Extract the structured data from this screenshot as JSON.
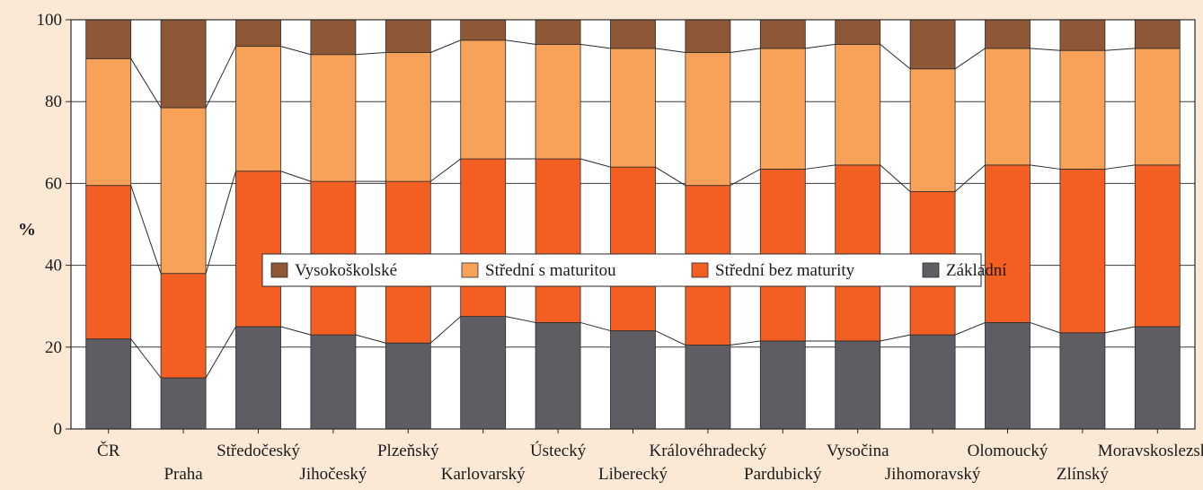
{
  "chart_data": {
    "type": "bar",
    "stacked": true,
    "ylabel": "%",
    "ylim": [
      0,
      100
    ],
    "yticks": [
      0,
      20,
      40,
      60,
      80,
      100
    ],
    "grid": true,
    "legend_placement": "center",
    "categories": [
      "ČR",
      "Praha",
      "Středočeský",
      "Jihočeský",
      "Plzeňský",
      "Karlovarský",
      "Ústecký",
      "Liberecký",
      "Královéhradecký",
      "Pardubický",
      "Vysočina",
      "Jihomoravský",
      "Olomoucký",
      "Zlínský",
      "Moravskoslezský"
    ],
    "series": [
      {
        "name": "Základní",
        "color": "#5f5d63",
        "values": [
          22,
          12.5,
          25,
          23,
          21,
          27.5,
          26,
          24,
          20.5,
          21.5,
          21.5,
          23,
          26,
          23.5,
          25
        ]
      },
      {
        "name": "Střední bez maturity",
        "color": "#f35f22",
        "values": [
          37.5,
          25.5,
          38,
          37.5,
          39.5,
          38.5,
          40,
          40,
          39,
          42,
          43,
          35,
          38.5,
          40,
          39.5
        ]
      },
      {
        "name": "Střední s maturitou",
        "color": "#f8a159",
        "values": [
          31,
          40.5,
          30.5,
          31,
          31.5,
          29,
          28,
          29,
          32.5,
          29.5,
          29.5,
          30,
          28.5,
          29,
          28.5
        ]
      },
      {
        "name": "Vysokoškolské",
        "color": "#8e5836",
        "values": [
          9.5,
          21.5,
          6.5,
          8.5,
          8,
          5,
          6,
          7,
          8,
          7,
          6,
          12,
          7,
          7.5,
          7
        ]
      }
    ],
    "legend_order": [
      "Vysokoškolské",
      "Střední s maturitou",
      "Střední bez maturity",
      "Základní"
    ]
  }
}
